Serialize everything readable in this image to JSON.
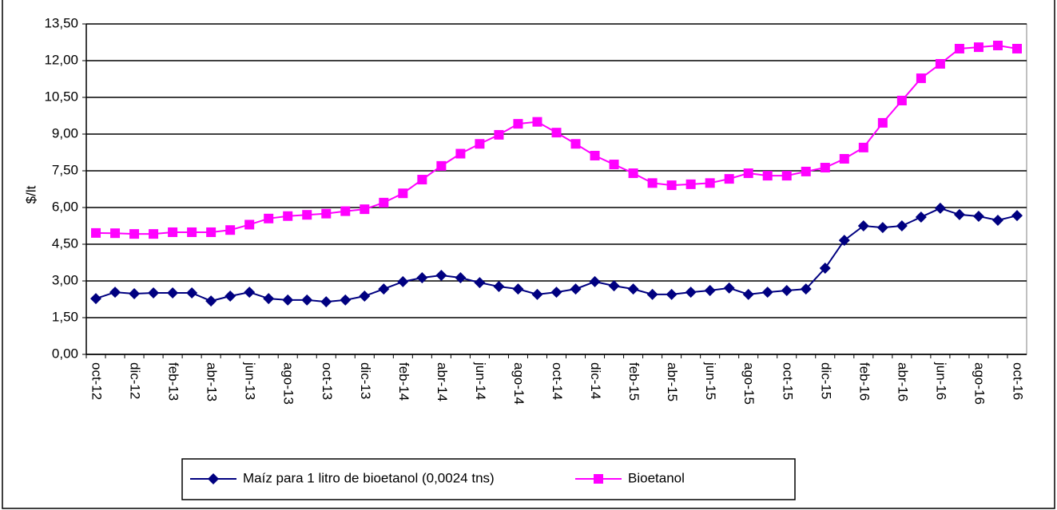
{
  "chart_data": {
    "type": "line",
    "y_label": "$/lt",
    "categories": [
      "oct-12",
      null,
      "dic-12",
      null,
      "feb-13",
      null,
      "abr-13",
      null,
      "jun-13",
      null,
      "ago-13",
      null,
      "oct-13",
      null,
      "dic-13",
      null,
      "feb-14",
      null,
      "abr-14",
      null,
      "jun-14",
      null,
      "ago-14",
      null,
      "oct-14",
      null,
      "dic-14",
      null,
      "feb-15",
      null,
      "abr-15",
      null,
      "jun-15",
      null,
      "ago-15",
      null,
      "oct-15",
      null,
      "dic-15",
      null,
      "feb-16",
      null,
      "abr-16",
      null,
      "jun-16",
      null,
      "ago-16",
      null,
      "oct-16"
    ],
    "series": [
      {
        "name": "Maíz para 1 litro de bioetanol (0,0024 tns)",
        "color": "#000080",
        "marker": "diamond",
        "values": [
          2.28,
          2.54,
          2.48,
          2.51,
          2.51,
          2.51,
          2.18,
          2.38,
          2.54,
          2.28,
          2.22,
          2.22,
          2.15,
          2.22,
          2.38,
          2.67,
          2.97,
          3.13,
          3.23,
          3.13,
          2.93,
          2.77,
          2.67,
          2.45,
          2.54,
          2.67,
          2.97,
          2.8,
          2.67,
          2.45,
          2.45,
          2.54,
          2.61,
          2.71,
          2.45,
          2.54,
          2.61,
          2.67,
          3.52,
          4.66,
          5.25,
          5.18,
          5.25,
          5.61,
          5.97,
          5.71,
          5.64,
          5.48,
          5.67
        ]
      },
      {
        "name": "Bioetanol",
        "color": "#FF00FF",
        "marker": "square",
        "values": [
          4.96,
          4.95,
          4.92,
          4.92,
          4.99,
          4.99,
          4.99,
          5.08,
          5.3,
          5.55,
          5.65,
          5.7,
          5.75,
          5.85,
          5.93,
          6.2,
          6.58,
          7.14,
          7.7,
          8.2,
          8.6,
          8.97,
          9.42,
          9.5,
          9.06,
          8.6,
          8.12,
          7.76,
          7.4,
          7.0,
          6.91,
          6.95,
          7.0,
          7.17,
          7.4,
          7.3,
          7.3,
          7.47,
          7.63,
          7.99,
          8.45,
          9.46,
          10.37,
          11.28,
          11.87,
          12.49,
          12.55,
          12.62,
          12.49
        ]
      }
    ],
    "ylim": [
      0,
      13.5
    ],
    "yticks": [
      {
        "value": 0,
        "label": "0,00"
      },
      {
        "value": 1.5,
        "label": "1,50"
      },
      {
        "value": 3,
        "label": "3,00"
      },
      {
        "value": 4.5,
        "label": "4,50"
      },
      {
        "value": 6,
        "label": "6,00"
      },
      {
        "value": 7.5,
        "label": "7,50"
      },
      {
        "value": 9,
        "label": "9,00"
      },
      {
        "value": 10.5,
        "label": "10,50"
      },
      {
        "value": 12,
        "label": "12,00"
      },
      {
        "value": 13.5,
        "label": "13,50"
      }
    ],
    "grid": true,
    "legend": "bottom"
  }
}
